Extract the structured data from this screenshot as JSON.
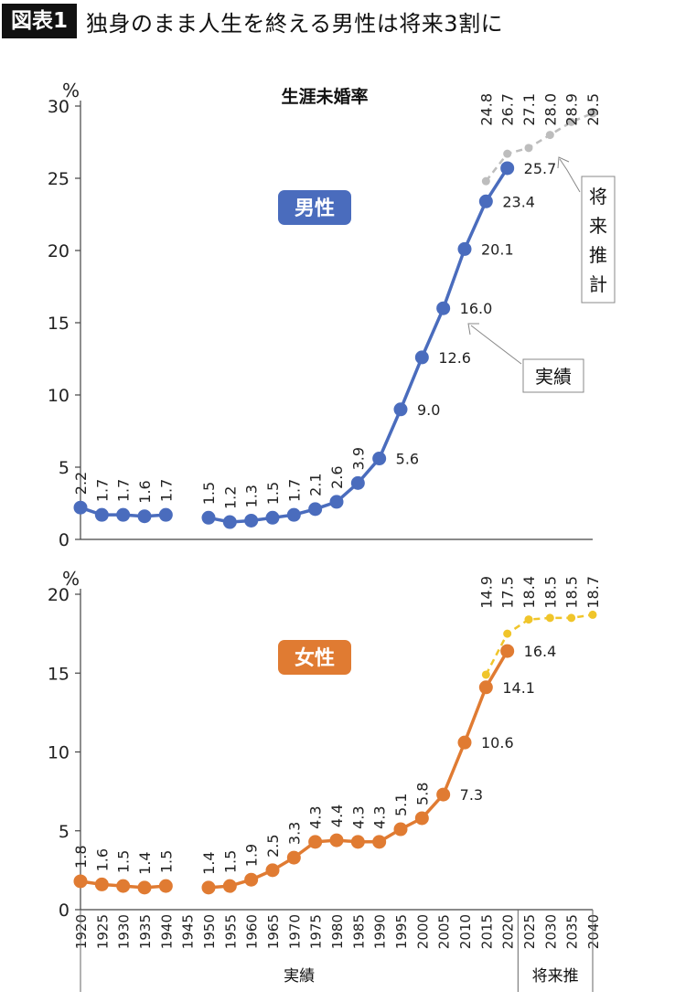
{
  "header": {
    "badge": "図表1",
    "headline": "独身のまま人生を終える男性は将来3割に"
  },
  "annotations": {
    "actual": "実績",
    "projection": "将来推計"
  },
  "x_groups": [
    {
      "label": "実績"
    },
    {
      "label": "将来推"
    }
  ],
  "colors": {
    "male": "#4a6cbd",
    "male_proj": "#bdbdbd",
    "female": "#e07b32",
    "female_proj": "#f0c52a"
  },
  "chart_data": [
    {
      "type": "line",
      "title": "生涯未婚率",
      "series_badge": "男性",
      "ylabel": "%",
      "ylim": [
        0,
        30
      ],
      "yticks": [
        0,
        5,
        10,
        15,
        20,
        25,
        30
      ],
      "grid": false,
      "series": [
        {
          "role": "actual",
          "x": [
            1920,
            1925,
            1930,
            1935,
            1940,
            1950,
            1955,
            1960,
            1965,
            1970,
            1975,
            1980,
            1985,
            1990,
            1995,
            2000,
            2005,
            2010,
            2015,
            2020
          ],
          "values": [
            2.2,
            1.7,
            1.7,
            1.6,
            1.7,
            1.5,
            1.2,
            1.3,
            1.5,
            1.7,
            2.1,
            2.6,
            3.9,
            5.6,
            9.0,
            12.6,
            16.0,
            20.1,
            23.4,
            25.7
          ]
        },
        {
          "role": "projection",
          "x": [
            2015,
            2020,
            2025,
            2030,
            2035,
            2040
          ],
          "values": [
            24.8,
            26.7,
            27.1,
            28.0,
            28.9,
            29.5
          ]
        }
      ]
    },
    {
      "type": "line",
      "series_badge": "女性",
      "ylabel": "%",
      "ylim": [
        0,
        20
      ],
      "yticks": [
        0,
        5,
        10,
        15,
        20
      ],
      "grid": false,
      "x_tick_labels": [
        "1920",
        "1925",
        "1930",
        "1935",
        "1940",
        "1945",
        "1950",
        "1955",
        "1960",
        "1965",
        "1970",
        "1975",
        "1980",
        "1985",
        "1990",
        "1995",
        "2000",
        "2005",
        "2010",
        "2015",
        "2020",
        "2025",
        "2030",
        "2035",
        "2040"
      ],
      "series": [
        {
          "role": "actual",
          "x": [
            1920,
            1925,
            1930,
            1935,
            1940,
            1950,
            1955,
            1960,
            1965,
            1970,
            1975,
            1980,
            1985,
            1990,
            1995,
            2000,
            2005,
            2010,
            2015,
            2020
          ],
          "values": [
            1.8,
            1.6,
            1.5,
            1.4,
            1.5,
            1.4,
            1.5,
            1.9,
            2.5,
            3.3,
            4.3,
            4.4,
            4.3,
            4.3,
            5.1,
            5.8,
            7.3,
            10.6,
            14.1,
            16.4
          ]
        },
        {
          "role": "projection",
          "x": [
            2015,
            2020,
            2025,
            2030,
            2035,
            2040
          ],
          "values": [
            14.9,
            17.5,
            18.4,
            18.5,
            18.5,
            18.7
          ]
        }
      ]
    }
  ]
}
